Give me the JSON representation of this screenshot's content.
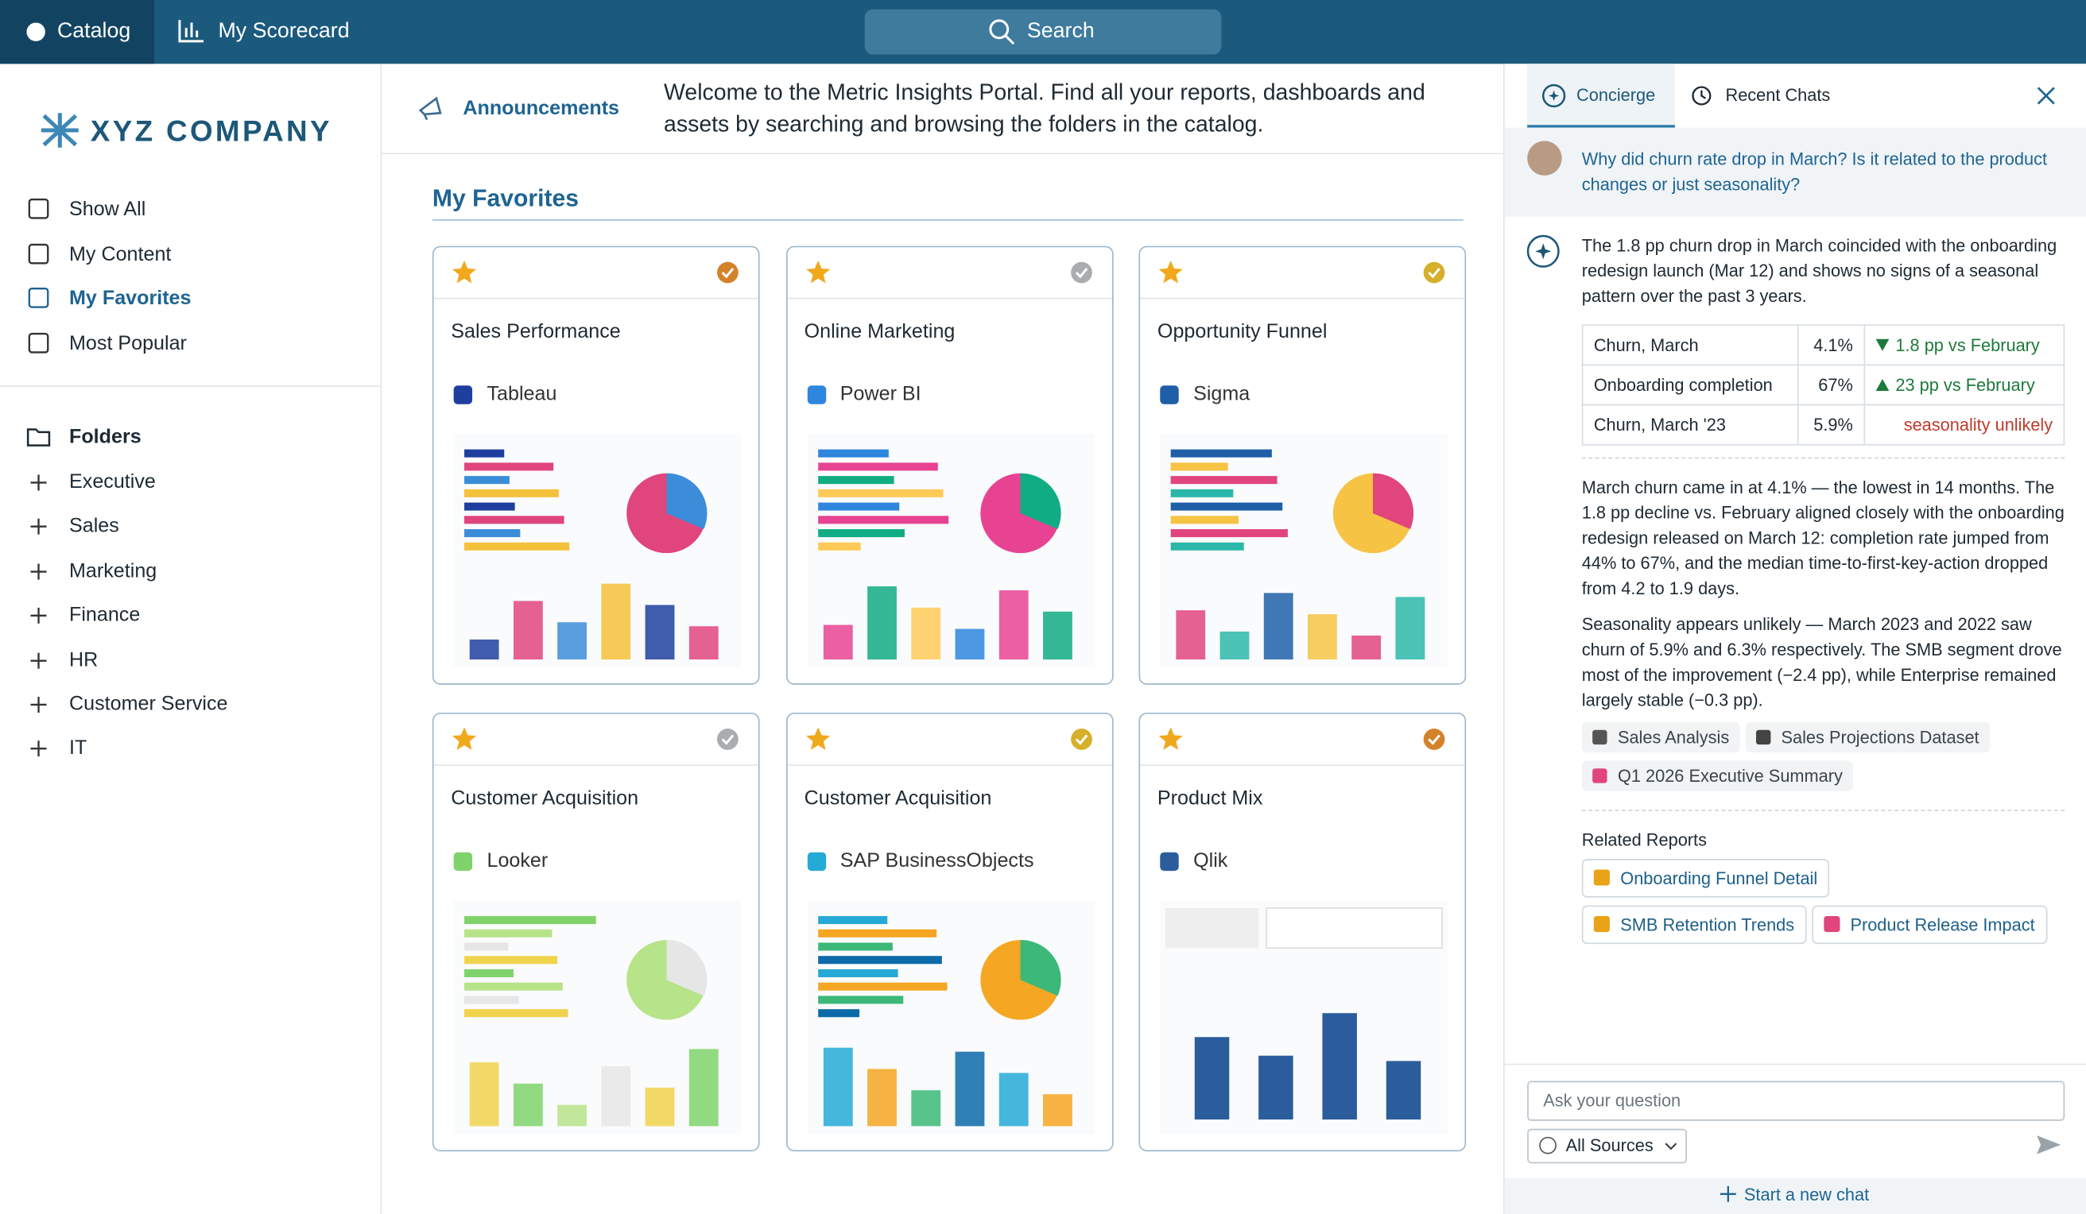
{
  "topbar": {
    "tabs": [
      "Catalog",
      "My Scorecard"
    ],
    "search": "Search"
  },
  "sidebar": {
    "logo": "XYZ COMPANY",
    "nav": [
      "Show All",
      "My Content",
      "My Favorites",
      "Most Popular"
    ],
    "folders_title": "Folders",
    "folders": [
      "Executive",
      "Sales",
      "Marketing",
      "Finance",
      "HR",
      "Customer Service",
      "IT"
    ]
  },
  "announcement": {
    "label": "Announcements",
    "text": "Welcome to the Metric Insights Portal. Find all your reports, dashboards and assets by searching and browsing the folders in the catalog."
  },
  "favorites": {
    "title": "My Favorites",
    "cards": [
      {
        "title": "Sales Performance",
        "source": "Tableau"
      },
      {
        "title": "Online Marketing",
        "source": "Power BI"
      },
      {
        "title": "Opportunity Funnel",
        "source": "Sigma"
      },
      {
        "title": "Customer Acquisition",
        "source": "Looker"
      },
      {
        "title": "Customer Acquisition",
        "source": "SAP BusinessObjects"
      },
      {
        "title": "Product Mix",
        "source": "Qlik"
      }
    ]
  },
  "chat": {
    "tabs": [
      "Concierge",
      "Recent Chats"
    ],
    "question": "Why did churn rate drop in March? Is it related to the product changes or just seasonality?",
    "answer_intro": "The 1.8 pp churn drop in March coincided with the onboarding redesign launch (Mar 12) and shows no signs of a seasonal pattern over the past 3 years.",
    "table": [
      [
        "Churn, March",
        "4.1%",
        "1.8 pp vs February"
      ],
      [
        "Onboarding completion",
        "67%",
        "23 pp vs February"
      ],
      [
        "Churn, March '23",
        "5.9%",
        "seasonality unlikely"
      ]
    ],
    "paragraphs": [
      "March churn came in at 4.1% — the lowest in 14 months. The 1.8 pp decline vs. February aligned closely with the onboarding redesign released on March 12: completion rate jumped from 44% to 67%, and the median time-to-first-key-action dropped from 4.2 to 1.9 days.",
      "Seasonality appears unlikely — March 2023 and 2022 saw churn of 5.9% and 6.3% respectively. The SMB segment drove most of the improvement (−2.4 pp), while Enterprise remained largely stable (−0.3 pp)."
    ],
    "sources": [
      "Sales Analysis",
      "Sales Projections Dataset",
      "Q1 2026 Executive Summary"
    ],
    "related_title": "Related Reports",
    "related": [
      "Onboarding Funnel Detail",
      "SMB Retention Trends",
      "Product Release Impact"
    ],
    "input_placeholder": "Ask your question",
    "sources_select": "All Sources",
    "new_chat": "Start a new chat"
  }
}
